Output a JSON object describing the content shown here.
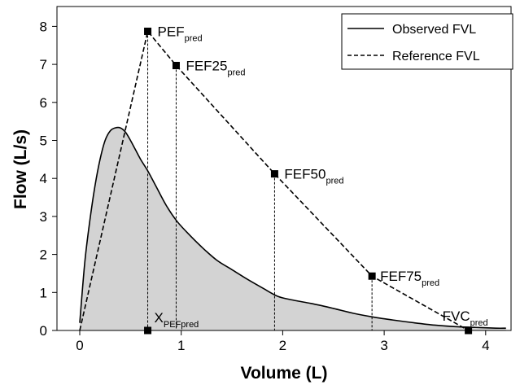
{
  "chart_data": {
    "type": "line",
    "xlabel": "Volume (L)",
    "ylabel": "Flow (L/s)",
    "xlim": [
      0,
      4.3
    ],
    "ylim": [
      0,
      8.5
    ],
    "xticks": [
      0,
      1,
      2,
      3,
      4
    ],
    "yticks": [
      0,
      1,
      2,
      3,
      4,
      5,
      6,
      7,
      8
    ],
    "grid": false,
    "legend_position": "top-right",
    "series": [
      {
        "name": "Observed FVL",
        "style": "solid",
        "color": "#000000",
        "fill": "#d3d3d3",
        "x": [
          0,
          0.05,
          0.1,
          0.15,
          0.2,
          0.25,
          0.3,
          0.35,
          0.4,
          0.45,
          0.5,
          0.55,
          0.6,
          0.67,
          0.75,
          0.85,
          0.95,
          1.05,
          1.2,
          1.35,
          1.5,
          1.65,
          1.8,
          1.95,
          2.1,
          2.3,
          2.5,
          2.7,
          2.9,
          3.1,
          3.3,
          3.5,
          3.7,
          3.9,
          4.1,
          4.2
        ],
        "y": [
          0.2,
          1.8,
          2.9,
          3.8,
          4.5,
          5.0,
          5.25,
          5.33,
          5.33,
          5.22,
          5.0,
          4.75,
          4.5,
          4.2,
          3.8,
          3.3,
          2.9,
          2.6,
          2.2,
          1.85,
          1.6,
          1.35,
          1.12,
          0.9,
          0.8,
          0.7,
          0.58,
          0.45,
          0.35,
          0.27,
          0.2,
          0.14,
          0.1,
          0.08,
          0.06,
          0.06
        ]
      },
      {
        "name": "Reference FVL",
        "style": "dashed",
        "color": "#000000",
        "x": [
          0,
          0.67,
          0.95,
          1.92,
          2.88,
          3.83
        ],
        "y": [
          0,
          7.87,
          6.97,
          4.12,
          1.43,
          0
        ]
      }
    ],
    "points": [
      {
        "x": 0.67,
        "y": 7.87,
        "label": "PEF",
        "sub": "pred",
        "dropline": true
      },
      {
        "x": 0.95,
        "y": 6.97,
        "label": "FEF25",
        "sub": "pred",
        "dropline": true
      },
      {
        "x": 1.92,
        "y": 4.12,
        "label": "FEF50",
        "sub": "pred",
        "dropline": true
      },
      {
        "x": 2.88,
        "y": 1.43,
        "label": "FEF75",
        "sub": "pred",
        "dropline": true
      },
      {
        "x": 3.83,
        "y": 0,
        "label": "FVC",
        "sub": "pred",
        "dropline": false
      },
      {
        "x": 0.67,
        "y": 0,
        "label": "X",
        "sub": "PEFpred",
        "dropline": false
      }
    ]
  }
}
